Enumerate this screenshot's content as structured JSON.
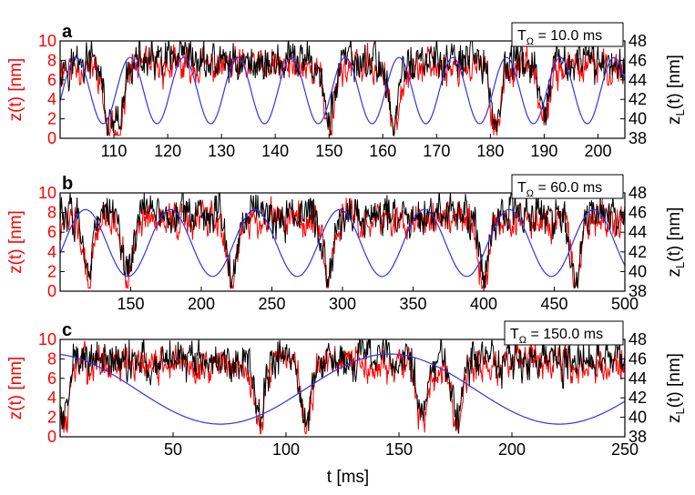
{
  "colors": {
    "red": "#ff0000",
    "black": "#000000",
    "blue": "#3333ee"
  },
  "xlabel": "t [ms]",
  "chart_data": [
    {
      "type": "line",
      "panel": "a",
      "legend": {
        "T_symbol": "T",
        "T_sub": "Ω",
        "T_value": " = 10.0 ms"
      },
      "period_ms": 10.0,
      "xlim": [
        100,
        205
      ],
      "ylim_left": [
        0,
        10
      ],
      "ylim_right": [
        38,
        48
      ],
      "xticks": [
        110,
        120,
        130,
        140,
        150,
        160,
        170,
        180,
        190,
        200
      ],
      "yticks_left": [
        0,
        2,
        4,
        6,
        8,
        10
      ],
      "yticks_right": [
        38,
        40,
        42,
        44,
        46,
        48
      ],
      "ylabel_left": "z(t) [nm]",
      "ylabel_right_main": "z",
      "ylabel_right_sub": "L",
      "ylabel_right_tail": "(t) [nm]",
      "dips_ms": [
        109,
        111,
        150,
        162,
        181,
        190
      ],
      "series": [
        {
          "name": "z(t) red",
          "axis": "left",
          "baseline_nm": 7.3
        },
        {
          "name": "z(t) black",
          "axis": "left",
          "baseline_nm": 7.8
        },
        {
          "name": "z_L(t)",
          "axis": "right",
          "min_nm": 39.5,
          "max_nm": 46.3
        }
      ]
    },
    {
      "type": "line",
      "panel": "b",
      "legend": {
        "T_symbol": "T",
        "T_sub": "Ω",
        "T_value": " = 60.0 ms"
      },
      "period_ms": 60.0,
      "xlim": [
        100,
        500
      ],
      "ylim_left": [
        0,
        10
      ],
      "ylim_right": [
        38,
        48
      ],
      "xticks": [
        150,
        200,
        250,
        300,
        350,
        400,
        450,
        500
      ],
      "yticks_left": [
        0,
        2,
        4,
        6,
        8,
        10
      ],
      "yticks_right": [
        38,
        40,
        42,
        44,
        46,
        48
      ],
      "ylabel_left": "z(t) [nm]",
      "ylabel_right_main": "z",
      "ylabel_right_sub": "L",
      "ylabel_right_tail": "(t) [nm]",
      "dips_ms": [
        120,
        148,
        222,
        290,
        400,
        465
      ],
      "series": [
        {
          "name": "z(t) red",
          "axis": "left",
          "baseline_nm": 7.2
        },
        {
          "name": "z(t) black",
          "axis": "left",
          "baseline_nm": 7.8
        },
        {
          "name": "z_L(t)",
          "axis": "right",
          "min_nm": 39.5,
          "max_nm": 46.3
        }
      ]
    },
    {
      "type": "line",
      "panel": "c",
      "legend": {
        "T_symbol": "T",
        "T_sub": "Ω",
        "T_value": " = 150.0 ms"
      },
      "period_ms": 150.0,
      "xlim": [
        0,
        250
      ],
      "ylim_left": [
        0,
        10
      ],
      "ylim_right": [
        38,
        48
      ],
      "xticks": [
        50,
        100,
        150,
        200,
        250
      ],
      "yticks_left": [
        0,
        2,
        4,
        6,
        8,
        10
      ],
      "yticks_right": [
        38,
        40,
        42,
        44,
        46,
        48
      ],
      "ylabel_left": "z(t) [nm]",
      "ylabel_right_main": "z",
      "ylabel_right_sub": "L",
      "ylabel_right_tail": "(t) [nm]",
      "dips_ms": [
        2,
        88,
        109,
        160,
        176
      ],
      "series": [
        {
          "name": "z(t) red",
          "axis": "left",
          "baseline_nm": 7.4
        },
        {
          "name": "z(t) black",
          "axis": "left",
          "baseline_nm": 8.0
        },
        {
          "name": "z_L(t)",
          "axis": "right",
          "min_nm": 39.3,
          "max_nm": 46.5
        }
      ]
    }
  ]
}
